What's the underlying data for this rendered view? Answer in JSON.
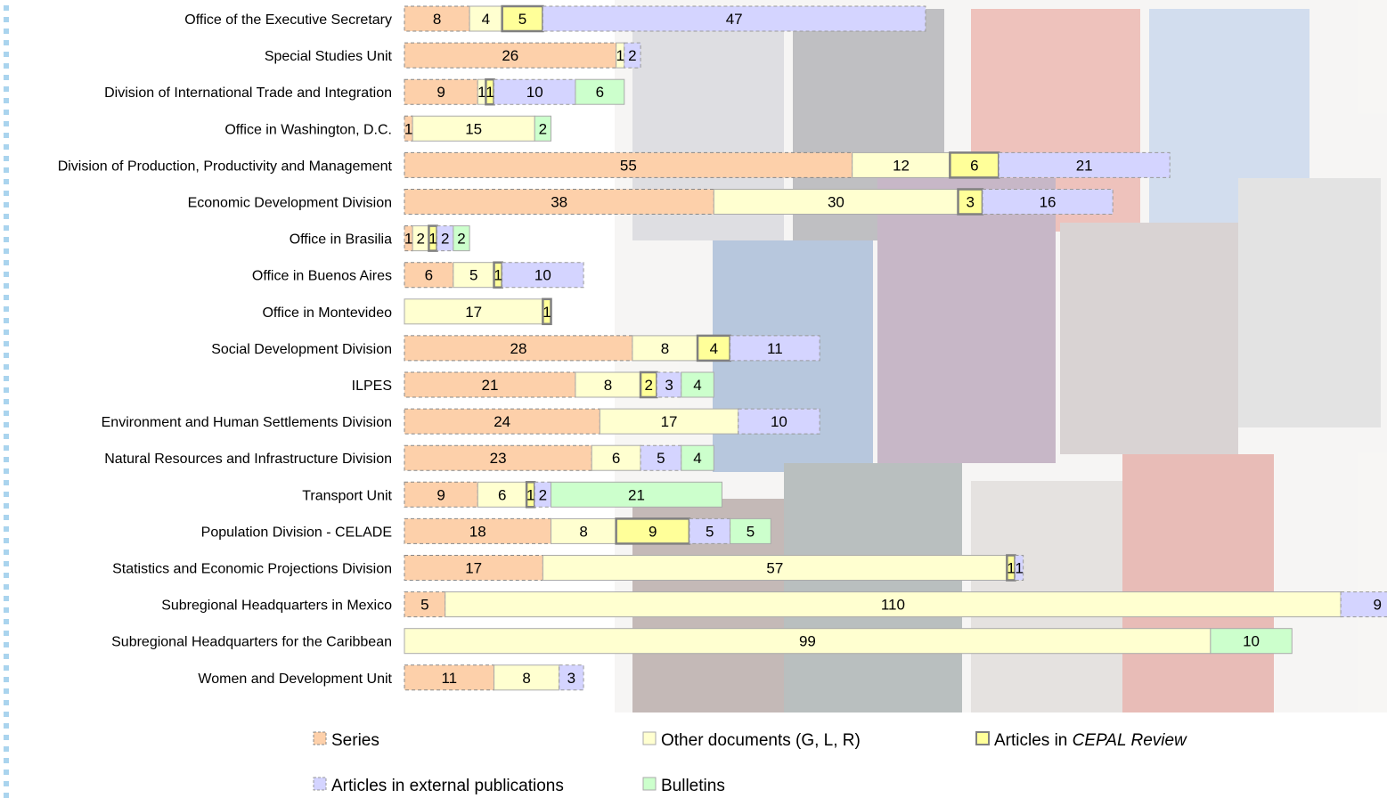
{
  "chart_data": {
    "type": "bar",
    "orientation": "horizontal",
    "stacked": true,
    "categories": [
      "Office of the Executive Secretary",
      "Special Studies Unit",
      "Division of International Trade and Integration",
      "Office in Washington, D.C.",
      "Division of Production, Productivity and Management",
      "Economic Development Division",
      "Office in Brasilia",
      "Office in Buenos Aires",
      "Office in Montevideo",
      "Social Development Division",
      "ILPES",
      "Environment and Human Settlements Division",
      "Natural Resources and Infrastructure Division",
      "Transport Unit",
      "Population Division - CELADE",
      "Statistics and Economic Projections Division",
      "Subregional Headquarters in Mexico",
      "Subregional Headquarters for the Caribbean",
      "Women and Development Unit"
    ],
    "series": [
      {
        "name": "Series",
        "color": "#fdd0aa",
        "values": [
          8,
          26,
          9,
          1,
          55,
          38,
          1,
          6,
          0,
          28,
          21,
          24,
          23,
          9,
          18,
          17,
          5,
          0,
          11
        ]
      },
      {
        "name": "Other documents (G, L, R)",
        "color": "#ffffd0",
        "values": [
          4,
          1,
          1,
          15,
          12,
          30,
          2,
          5,
          17,
          8,
          8,
          17,
          6,
          6,
          8,
          57,
          110,
          99,
          8
        ]
      },
      {
        "name": "Articles in ",
        "name_italic": "CEPAL Review",
        "color": "#ffff99",
        "values": [
          5,
          0,
          1,
          0,
          6,
          3,
          1,
          1,
          1,
          4,
          2,
          0,
          0,
          1,
          9,
          1,
          0,
          0,
          0
        ]
      },
      {
        "name": "Articles in external publications",
        "color": "#d4d4ff",
        "values": [
          47,
          2,
          10,
          0,
          21,
          16,
          2,
          10,
          0,
          11,
          3,
          10,
          5,
          2,
          5,
          1,
          9,
          0,
          3
        ]
      },
      {
        "name": "Bulletins",
        "color": "#ccffcc",
        "values": [
          0,
          0,
          6,
          2,
          0,
          0,
          2,
          0,
          0,
          0,
          4,
          0,
          4,
          21,
          5,
          0,
          0,
          10,
          0
        ]
      }
    ],
    "xlim": [
      0,
      120
    ],
    "grid": false,
    "legend_position": "bottom"
  }
}
